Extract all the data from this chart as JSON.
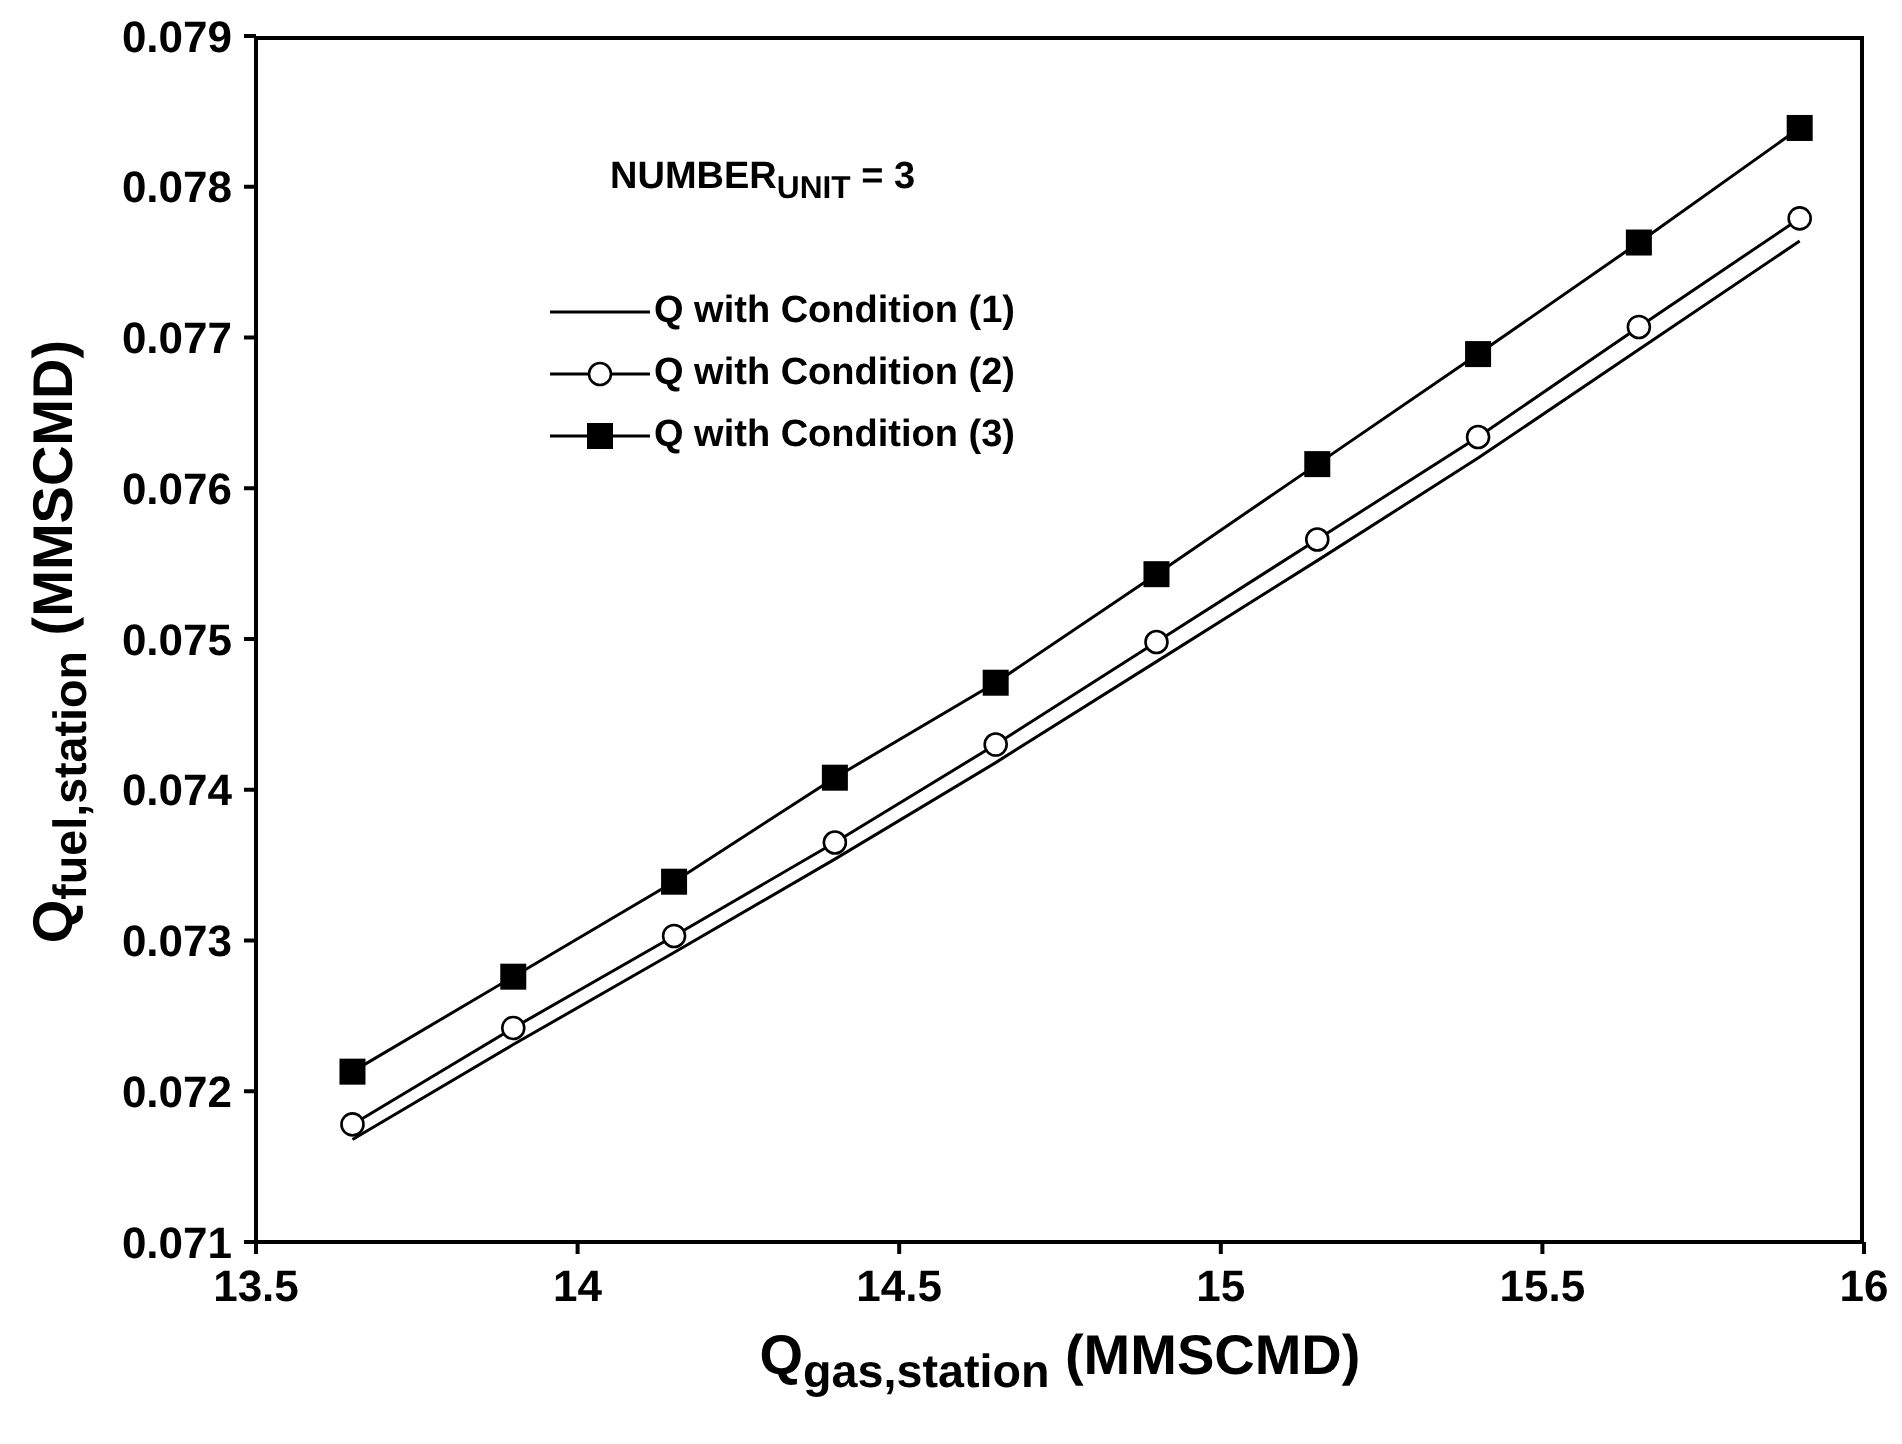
{
  "chart_data": {
    "type": "line",
    "xlabel": "Q$_{gas,station}$ (MMSCMD)",
    "ylabel": "Q$_{fuel,station}$ (MMSCMD)",
    "x": [
      13.65,
      13.9,
      14.15,
      14.4,
      14.65,
      14.9,
      15.15,
      15.4,
      15.65,
      15.9
    ],
    "series": [
      {
        "name": "Q with Condition (1)",
        "color": "#000000",
        "marker": "none",
        "values": [
          0.07168,
          0.07231,
          0.07292,
          0.07354,
          0.07418,
          0.07485,
          0.07552,
          0.0762,
          0.07692,
          0.07764
        ]
      },
      {
        "name": "Q with Condition (2)",
        "color": "#000000",
        "marker": "circle",
        "values": [
          0.07178,
          0.07242,
          0.07303,
          0.07365,
          0.0743,
          0.07498,
          0.07566,
          0.07634,
          0.07707,
          0.07779
        ]
      },
      {
        "name": "Q with Condition (3)",
        "color": "#000000",
        "marker": "square",
        "values": [
          0.07213,
          0.07276,
          0.07339,
          0.07408,
          0.07471,
          0.07543,
          0.07616,
          0.07689,
          0.07763,
          0.07839
        ]
      }
    ],
    "xlim": [
      13.5,
      16
    ],
    "xticks": [
      13.5,
      14,
      14.5,
      15,
      15.5,
      16
    ],
    "ylim": [
      0.071,
      0.079
    ],
    "yticks": [
      0.071,
      0.072,
      0.073,
      0.074,
      0.075,
      0.076,
      0.077,
      0.078,
      0.079
    ],
    "grid": false,
    "legend": "top left",
    "line_style": "solid",
    "annotations": [
      "NUMBER$_{UNIT}$ = 3"
    ]
  }
}
